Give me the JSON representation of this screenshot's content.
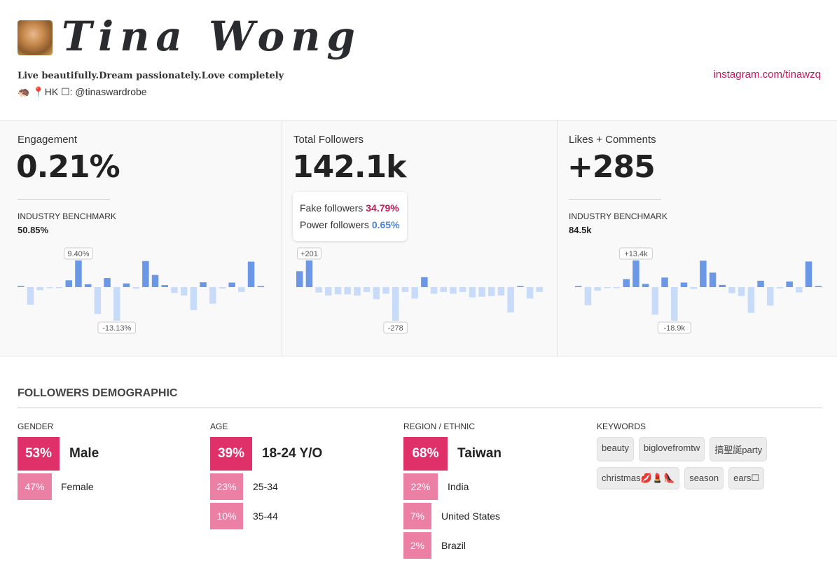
{
  "profile": {
    "name": "Tina Wong",
    "bio": "Live beautifully.Dream passionately.Love completely",
    "bio2": "🦔 📍HK ☐: @tinaswardrobe",
    "link": "instagram.com/tinawzq"
  },
  "stats": [
    {
      "label": "Engagement",
      "value": "0.21%",
      "benchmark_label": "INDUSTRY BENCHMARK",
      "benchmark": "50.85%"
    },
    {
      "label": "Total Followers",
      "value": "142.1k",
      "fake_label": "Fake followers",
      "fake": "34.79%",
      "power_label": "Power followers",
      "power": "0.65%"
    },
    {
      "label": "Likes + Comments",
      "value": "+285",
      "benchmark_label": "INDUSTRY BENCHMARK",
      "benchmark": "84.5k"
    }
  ],
  "colors": {
    "pos": "#6a97e6",
    "neg": "#c8dcfa",
    "accent": "#c2185b",
    "power": "#4a86d6",
    "primary_box": "#e0306a",
    "secondary_box": "#e86b95"
  },
  "chart_data": [
    {
      "type": "bar",
      "title": "Engagement",
      "max_label": "9.40%",
      "min_label": "-13.13%",
      "values": [
        0.1,
        -6.9,
        -1.2,
        -0.2,
        -0.2,
        2.4,
        9.4,
        1.0,
        -10.5,
        3.2,
        -13.13,
        1.3,
        -0.6,
        9.2,
        4.3,
        0.7,
        -2.3,
        -3.3,
        -9.0,
        1.7,
        -6.5,
        -0.6,
        1.6,
        -1.9,
        9.0,
        0.1
      ]
    },
    {
      "type": "bar",
      "title": "Total Followers",
      "max_label": "+201",
      "min_label": "-278",
      "values": [
        120,
        201,
        -45,
        -70,
        -60,
        -60,
        -70,
        -40,
        -100,
        -55,
        -278,
        -40,
        -95,
        75,
        -55,
        -40,
        -55,
        -40,
        -85,
        -80,
        -75,
        -70,
        -210,
        5,
        -95,
        -40
      ]
    },
    {
      "type": "bar",
      "title": "Likes + Comments",
      "max_label": "+13.4k",
      "min_label": "-18.9k",
      "values": [
        0.1,
        -10.2,
        -2,
        -0.3,
        -0.3,
        4.0,
        13.4,
        1.6,
        -15.5,
        4.8,
        -18.9,
        2.3,
        -1,
        13.3,
        7.3,
        1.1,
        -3.4,
        -5.0,
        -14.5,
        3.2,
        -10.4,
        -0.7,
        2.8,
        -3.0,
        12.9,
        0.2
      ]
    }
  ],
  "demographic": {
    "title": "FOLLOWERS DEMOGRAPHIC",
    "gender": {
      "label": "GENDER",
      "rows": [
        {
          "pct": "53%",
          "name": "Male"
        },
        {
          "pct": "47%",
          "name": "Female"
        }
      ]
    },
    "age": {
      "label": "AGE",
      "rows": [
        {
          "pct": "39%",
          "name": "18-24 Y/O"
        },
        {
          "pct": "23%",
          "name": "25-34"
        },
        {
          "pct": "10%",
          "name": "35-44"
        }
      ]
    },
    "region": {
      "label": "REGION / ETHNIC",
      "rows": [
        {
          "pct": "68%",
          "name": "Taiwan"
        },
        {
          "pct": "22%",
          "name": "India"
        },
        {
          "pct": "7%",
          "name": "United States"
        },
        {
          "pct": "2%",
          "name": "Brazil"
        }
      ]
    },
    "keywords": {
      "label": "KEYWORDS",
      "items": [
        "beauty",
        "biglovefromtw",
        "搞聖誕party",
        "christmas💋💄👠",
        "season",
        "ears☐"
      ]
    }
  }
}
